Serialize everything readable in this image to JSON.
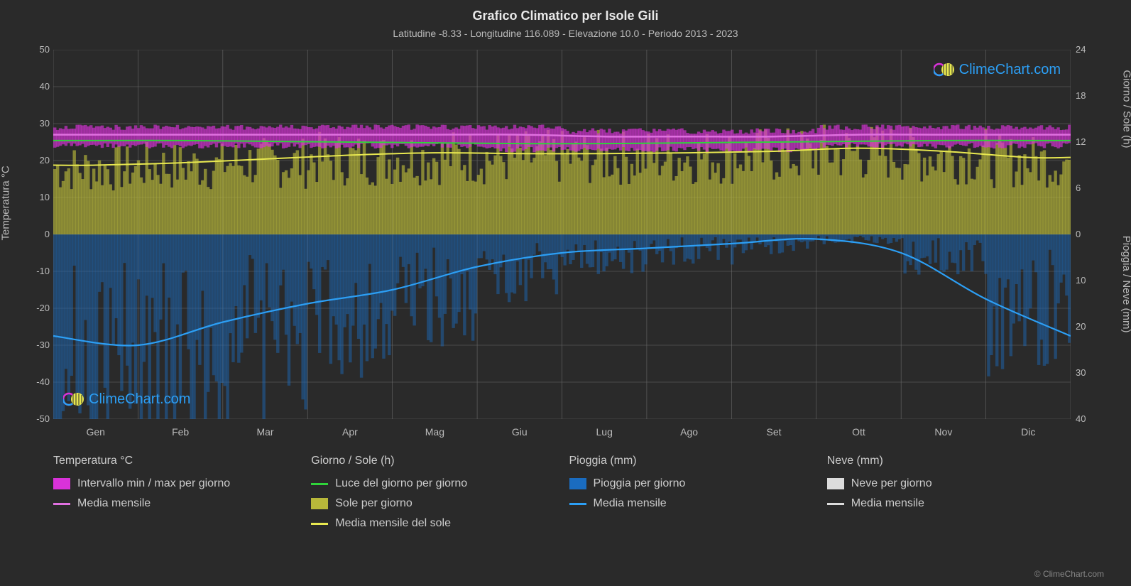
{
  "title": "Grafico Climatico per Isole Gili",
  "subtitle": "Latitudine -8.33 - Longitudine 116.089 - Elevazione 10.0 - Periodo 2013 - 2023",
  "axis_labels": {
    "left": "Temperatura °C",
    "right_top": "Giorno / Sole (h)",
    "right_bottom": "Pioggia / Neve (mm)"
  },
  "colors": {
    "background": "#2a2a2a",
    "grid": "#6a6a6a",
    "text": "#bbbbbb",
    "temp_range": "#d932d9",
    "temp_mean_line": "#e070e0",
    "daylight_line": "#2fd43a",
    "sun_fill": "#b8b83a",
    "sun_mean_line": "#e8e850",
    "rain_fill": "#1a6cc0",
    "rain_mean_line": "#2c9ff5",
    "snow_fill": "#dcdcdc",
    "snow_mean_line": "#dcdcdc",
    "logo_text": "#2c9ff5"
  },
  "yaxis_left": {
    "min": -50,
    "max": 50,
    "step": 10,
    "ticks": [
      "50",
      "40",
      "30",
      "20",
      "10",
      "0",
      "-10",
      "-20",
      "-30",
      "-40",
      "-50"
    ]
  },
  "yaxis_right_top": {
    "min_h": 0,
    "max_h": 24,
    "ticks": [
      "24",
      "18",
      "12",
      "6",
      "0"
    ]
  },
  "yaxis_right_bottom": {
    "min_mm": 0,
    "max_mm": 40,
    "ticks": [
      "10",
      "20",
      "30",
      "40"
    ]
  },
  "months": [
    "Gen",
    "Feb",
    "Mar",
    "Apr",
    "Mag",
    "Giu",
    "Lug",
    "Ago",
    "Set",
    "Ott",
    "Nov",
    "Dic"
  ],
  "series": {
    "temp_mean": [
      27,
      27,
      27,
      27,
      27,
      27,
      26.5,
      26.5,
      26.5,
      27,
      27,
      27
    ],
    "temp_min": [
      24,
      24,
      24,
      24,
      24,
      23,
      23,
      23,
      23,
      24,
      24,
      24
    ],
    "temp_max": [
      29,
      29,
      29,
      29,
      29,
      29,
      28,
      28,
      28,
      29,
      29,
      29
    ],
    "daylight_h": [
      12.2,
      12.2,
      12.1,
      12.0,
      11.9,
      11.8,
      11.8,
      11.9,
      12.0,
      12.1,
      12.2,
      12.2
    ],
    "sun_mean_h": [
      9.0,
      9.3,
      9.8,
      10.3,
      10.6,
      10.5,
      10.5,
      10.6,
      10.8,
      11.2,
      10.8,
      10.0
    ],
    "rain_mean_mm": [
      22,
      24,
      19,
      15,
      12,
      7,
      4,
      3,
      2,
      1,
      4,
      14,
      22
    ]
  },
  "legend": {
    "col1": {
      "header": "Temperatura °C",
      "items": [
        {
          "type": "swatch",
          "key": "temp_range",
          "label": "Intervallo min / max per giorno"
        },
        {
          "type": "line",
          "key": "temp_mean_line",
          "label": "Media mensile"
        }
      ]
    },
    "col2": {
      "header": "Giorno / Sole (h)",
      "items": [
        {
          "type": "line",
          "key": "daylight_line",
          "label": "Luce del giorno per giorno"
        },
        {
          "type": "swatch",
          "key": "sun_fill",
          "label": "Sole per giorno"
        },
        {
          "type": "line",
          "key": "sun_mean_line",
          "label": "Media mensile del sole"
        }
      ]
    },
    "col3": {
      "header": "Pioggia (mm)",
      "items": [
        {
          "type": "swatch",
          "key": "rain_fill",
          "label": "Pioggia per giorno"
        },
        {
          "type": "line",
          "key": "rain_mean_line",
          "label": "Media mensile"
        }
      ]
    },
    "col4": {
      "header": "Neve (mm)",
      "items": [
        {
          "type": "swatch",
          "key": "snow_fill",
          "label": "Neve per giorno"
        },
        {
          "type": "line",
          "key": "snow_mean_line",
          "label": "Media mensile"
        }
      ]
    }
  },
  "logo_text": "ClimeChart.com",
  "copyright": "© ClimeChart.com"
}
